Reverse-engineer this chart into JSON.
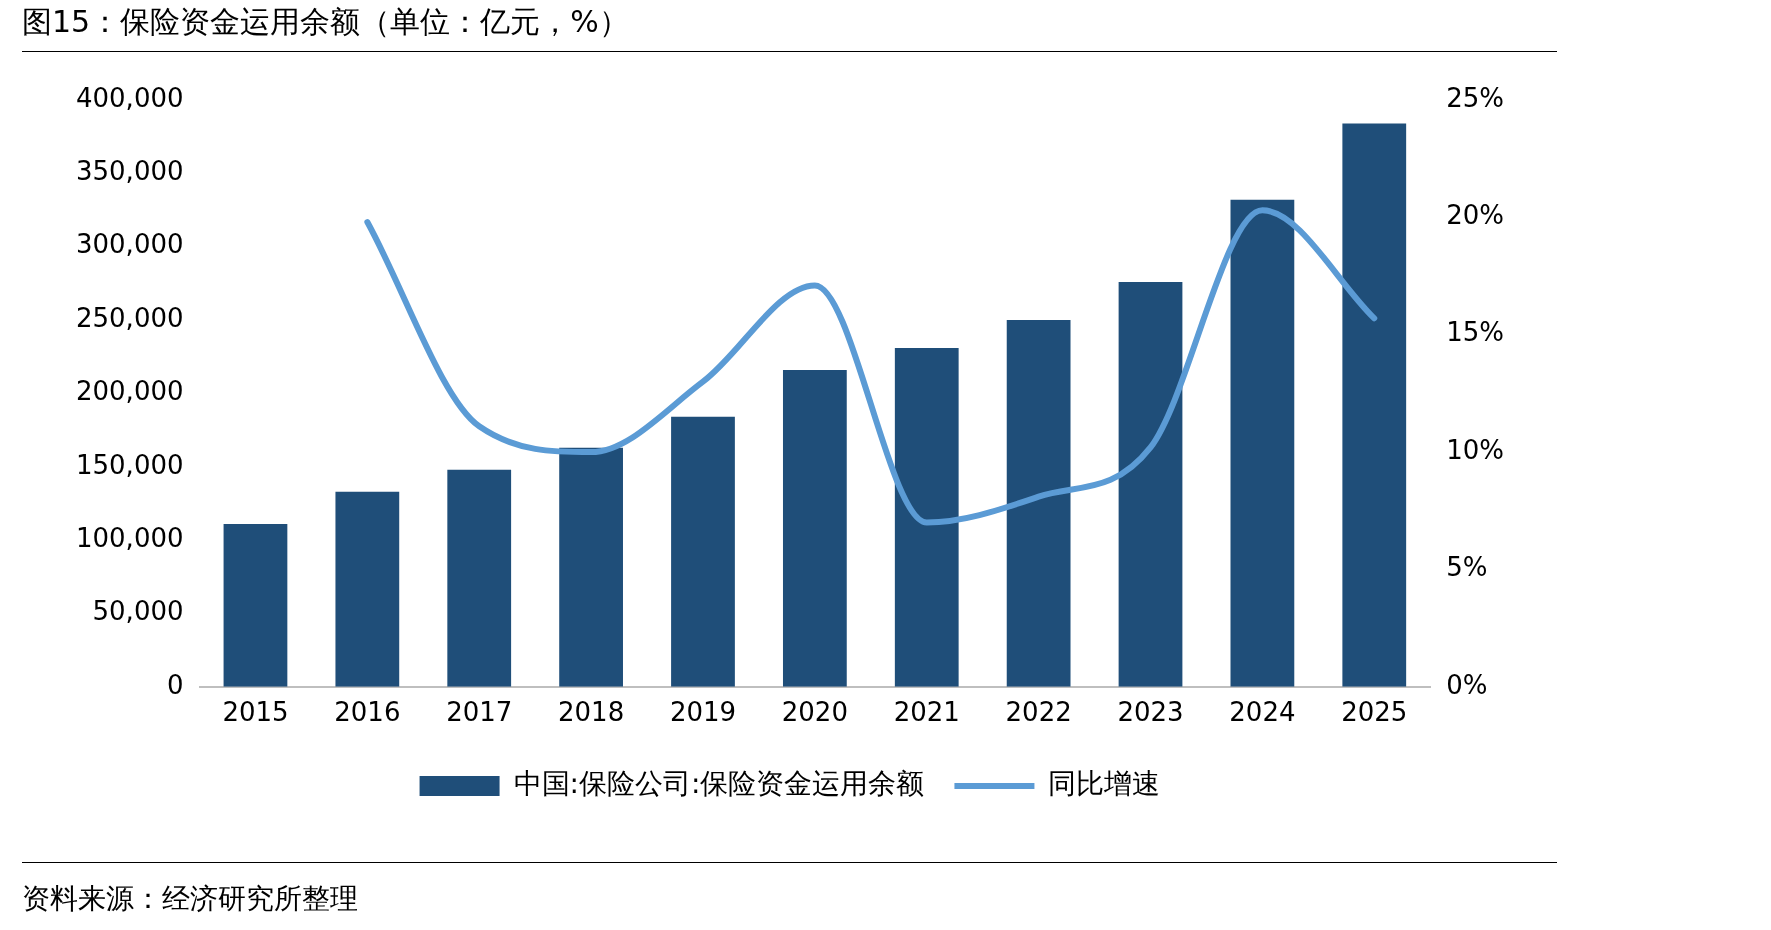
{
  "chart_data": {
    "type": "bar",
    "title": "图15：保险资金运用余额（单位：亿元，%）",
    "categories": [
      "2015",
      "2016",
      "2017",
      "2018",
      "2019",
      "2020",
      "2021",
      "2022",
      "2023",
      "2024",
      "2025"
    ],
    "series": [
      {
        "name": "中国:保险公司:保险资金运用余额",
        "color": "#1f4e79",
        "values": [
          111000,
          133000,
          148000,
          163000,
          184000,
          216000,
          231000,
          250000,
          276000,
          332000,
          384000
        ]
      },
      {
        "name": "同比增速",
        "type": "line",
        "axis": "y2",
        "color": "#5b9bd5",
        "values": [
          null,
          19.8,
          11.1,
          10.0,
          13.0,
          17.1,
          7.0,
          8.1,
          10.2,
          20.3,
          15.7
        ]
      }
    ],
    "ylim": [
      0,
      400000
    ],
    "yticks": [
      {
        "value": 0,
        "label": "0"
      },
      {
        "value": 50000,
        "label": "50,000"
      },
      {
        "value": 100000,
        "label": "100,000"
      },
      {
        "value": 150000,
        "label": "150,000"
      },
      {
        "value": 200000,
        "label": "200,000"
      },
      {
        "value": 250000,
        "label": "250,000"
      },
      {
        "value": 300000,
        "label": "300,000"
      },
      {
        "value": 350000,
        "label": "350,000"
      },
      {
        "value": 400000,
        "label": "400,000"
      }
    ],
    "y2lim": [
      0,
      25
    ],
    "y2ticks": [
      {
        "value": 0,
        "label": "0%"
      },
      {
        "value": 5,
        "label": "5%"
      },
      {
        "value": 10,
        "label": "10%"
      },
      {
        "value": 15,
        "label": "15%"
      },
      {
        "value": 20,
        "label": "20%"
      },
      {
        "value": 25,
        "label": "25%"
      }
    ],
    "grid": false,
    "legend": "bottom",
    "marker": "none",
    "annotations": [
      "资料来源：经济研究所整理"
    ]
  }
}
